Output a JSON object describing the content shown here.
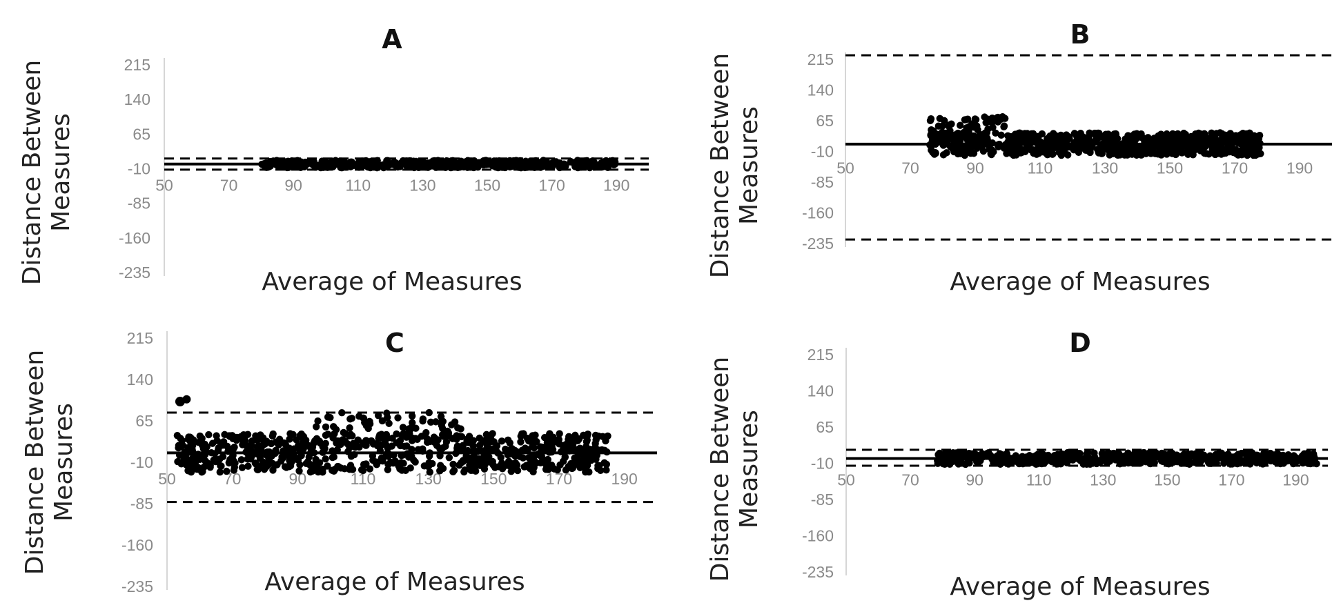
{
  "figure": {
    "description_label": "Bland-Altman style plots, four panels"
  },
  "chart_data": [
    {
      "type": "scatter",
      "title": "A",
      "xlabel": "Average of Measures",
      "ylabel": "Distance Between Measures",
      "xlim": [
        50,
        200
      ],
      "ylim": [
        -235,
        215
      ],
      "x_ticks": [
        50,
        70,
        90,
        110,
        130,
        150,
        170,
        190
      ],
      "y_ticks": [
        215,
        140,
        65,
        -10,
        -85,
        -160,
        -235
      ],
      "x_ticks_at_y": -10,
      "mean_line": 0,
      "limits_of_agreement": [
        12,
        -12
      ],
      "scatter_x_range": [
        80,
        190
      ],
      "scatter_y_range": [
        -8,
        8
      ]
    },
    {
      "type": "scatter",
      "title": "B",
      "xlabel": "Average of Measures",
      "ylabel": "Distance Between Measures",
      "xlim": [
        50,
        200
      ],
      "ylim": [
        -235,
        215
      ],
      "x_ticks": [
        50,
        70,
        90,
        110,
        130,
        150,
        170,
        190
      ],
      "y_ticks": [
        215,
        140,
        65,
        -10,
        -85,
        -160,
        -235
      ],
      "x_ticks_at_y": -10,
      "mean_line": 8,
      "limits_of_agreement": [
        225,
        -225
      ],
      "scatter_x_range": [
        76,
        178
      ],
      "scatter_y_range": [
        -30,
        75
      ]
    },
    {
      "type": "scatter",
      "title": "C",
      "xlabel": "Average of Measures",
      "ylabel": "Distance Between Measures",
      "xlim": [
        50,
        200
      ],
      "ylim": [
        -235,
        215
      ],
      "x_ticks": [
        50,
        70,
        90,
        110,
        130,
        150,
        170,
        190
      ],
      "y_ticks": [
        215,
        140,
        65,
        -10,
        -85,
        -160,
        -235
      ],
      "x_ticks_at_y": -10,
      "mean_line": 7,
      "limits_of_agreement": [
        80,
        -82
      ],
      "scatter_x_range": [
        53,
        185
      ],
      "scatter_y_range": [
        -35,
        105
      ]
    },
    {
      "type": "scatter",
      "title": "D",
      "xlabel": "Average of Measures",
      "ylabel": "Distance Between Measures",
      "xlim": [
        50,
        200
      ],
      "ylim": [
        -235,
        215
      ],
      "x_ticks": [
        50,
        70,
        90,
        110,
        130,
        150,
        170,
        190
      ],
      "y_ticks": [
        215,
        140,
        65,
        -10,
        -85,
        -160,
        -235
      ],
      "x_ticks_at_y": -10,
      "mean_line": 0,
      "limits_of_agreement": [
        18,
        -15
      ],
      "scatter_x_range": [
        78,
        197
      ],
      "scatter_y_range": [
        -12,
        12
      ]
    }
  ]
}
